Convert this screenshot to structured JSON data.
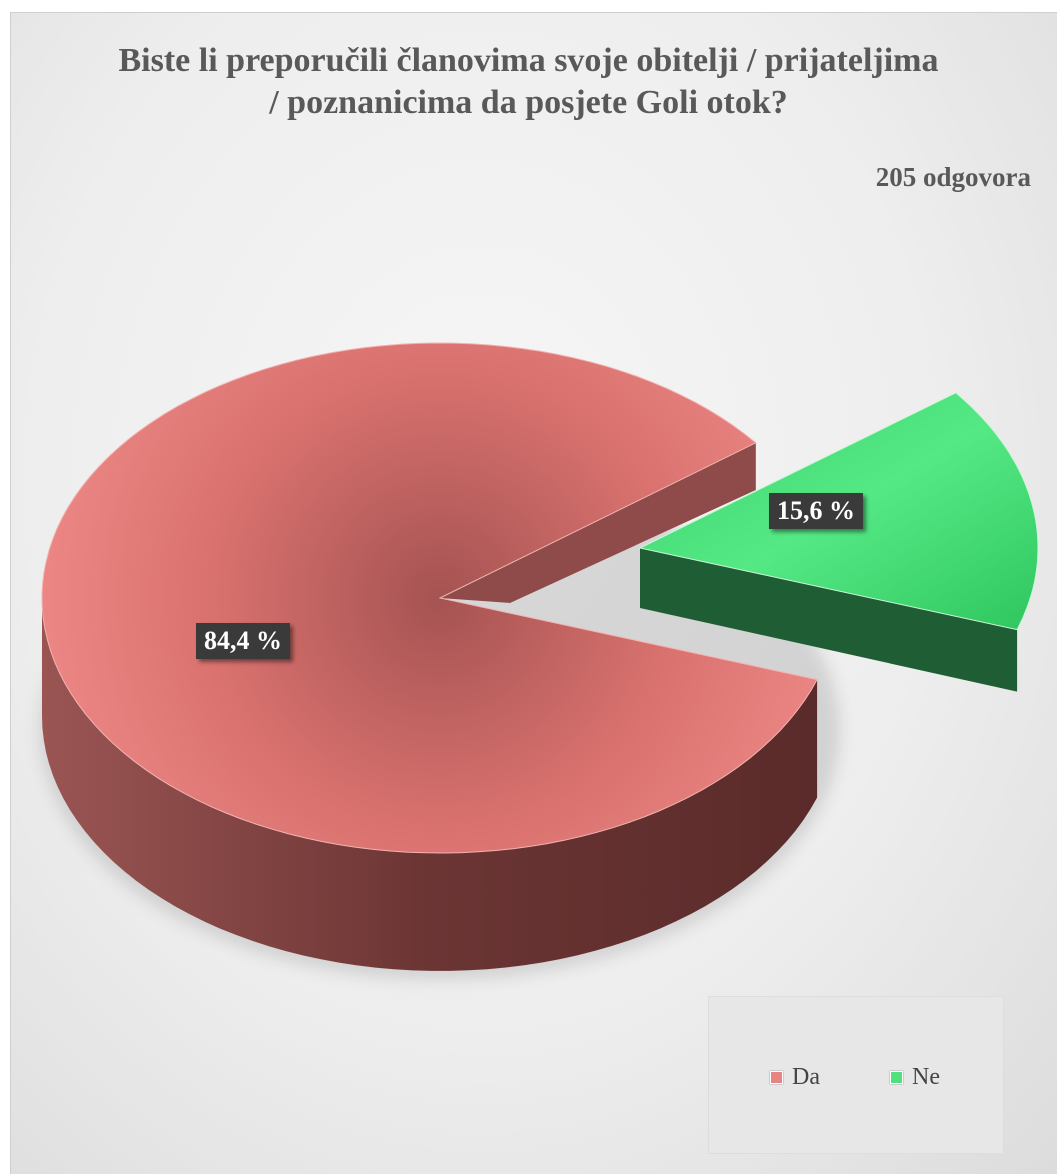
{
  "chart_data": {
    "type": "pie",
    "title": "Biste li preporučili članovima svoje obitelji / prijateljima / poznanicima da posjete Goli otok?",
    "subtitle": "205 odgovora",
    "categories": [
      "Da",
      "Ne"
    ],
    "values": [
      84.4,
      15.6
    ],
    "data_labels": [
      "84,4 %",
      "15,6 %"
    ],
    "colors": [
      "#e88583",
      "#4fe07f"
    ],
    "legend_position": "bottom-right",
    "style": "3d-exploded"
  }
}
